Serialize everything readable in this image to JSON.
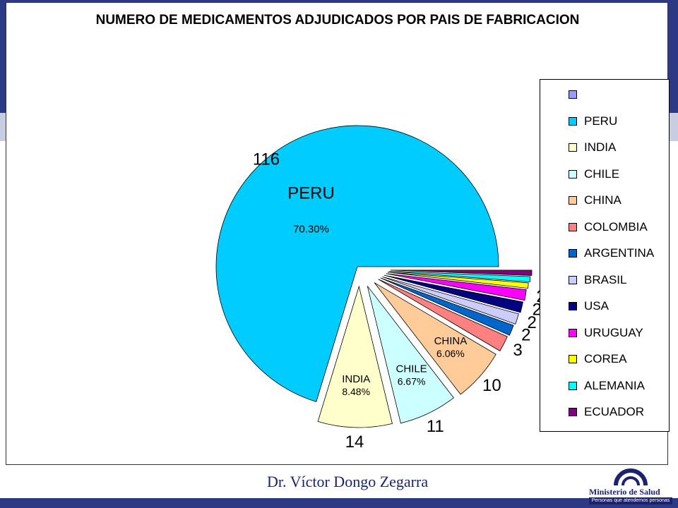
{
  "slide": {
    "author": "Dr. Víctor Dongo Zegarra",
    "logo": {
      "name": "Ministerio de Salud",
      "tagline": "Personas que atendemos personas"
    },
    "colors": {
      "slide_dark": "#2c3a86",
      "slide_band": "#c8cde4"
    }
  },
  "chart_data": {
    "type": "pie",
    "title": "NUMERO DE MEDICAMENTOS ADJUDICADOS POR PAIS DE FABRICACION",
    "start_angle_deg": 0,
    "direction": "counterclockwise",
    "exploded": true,
    "legend_position": "right",
    "slices": [
      {
        "label": "PERU",
        "value": 116,
        "percent_label": "70.30%",
        "color": "#00ccff"
      },
      {
        "label": "INDIA",
        "value": 14,
        "percent_label": "8.48%",
        "color": "#ffffcc"
      },
      {
        "label": "CHILE",
        "value": 11,
        "percent_label": "6.67%",
        "color": "#ccffff"
      },
      {
        "label": "CHINA",
        "value": 10,
        "percent_label": "6.06%",
        "color": "#ffcc99"
      },
      {
        "label": "COLOMBIA",
        "value": 3,
        "percent_label": "",
        "color": "#ff8080"
      },
      {
        "label": "ARGENTINA",
        "value": 2,
        "percent_label": "",
        "color": "#0066cc"
      },
      {
        "label": "BRASIL",
        "value": 2,
        "percent_label": "",
        "color": "#ccccff"
      },
      {
        "label": "USA",
        "value": 2,
        "percent_label": "",
        "color": "#000080"
      },
      {
        "label": "URUGUAY",
        "value": 2,
        "percent_label": "",
        "color": "#ff00ff"
      },
      {
        "label": "COREA",
        "value": 1,
        "percent_label": "",
        "color": "#ffff00"
      },
      {
        "label": "ALEMANIA",
        "value": 1,
        "percent_label": "",
        "color": "#00ffff"
      },
      {
        "label": "ECUADOR",
        "value": 1,
        "percent_label": "",
        "color": "#800080"
      }
    ],
    "legend_entries": [
      {
        "label": "",
        "color": "#9999ff"
      },
      {
        "label": "PERU",
        "color": "#00ccff"
      },
      {
        "label": "INDIA",
        "color": "#ffffcc"
      },
      {
        "label": "CHILE",
        "color": "#ccffff"
      },
      {
        "label": "CHINA",
        "color": "#ffcc99"
      },
      {
        "label": "COLOMBIA",
        "color": "#ff8080"
      },
      {
        "label": "ARGENTINA",
        "color": "#0066cc"
      },
      {
        "label": "BRASIL",
        "color": "#ccccff"
      },
      {
        "label": "USA",
        "color": "#000080"
      },
      {
        "label": "URUGUAY",
        "color": "#ff00ff"
      },
      {
        "label": "COREA",
        "color": "#ffff00"
      },
      {
        "label": "ALEMANIA",
        "color": "#00ffff"
      },
      {
        "label": "ECUADOR",
        "color": "#800080"
      }
    ]
  }
}
